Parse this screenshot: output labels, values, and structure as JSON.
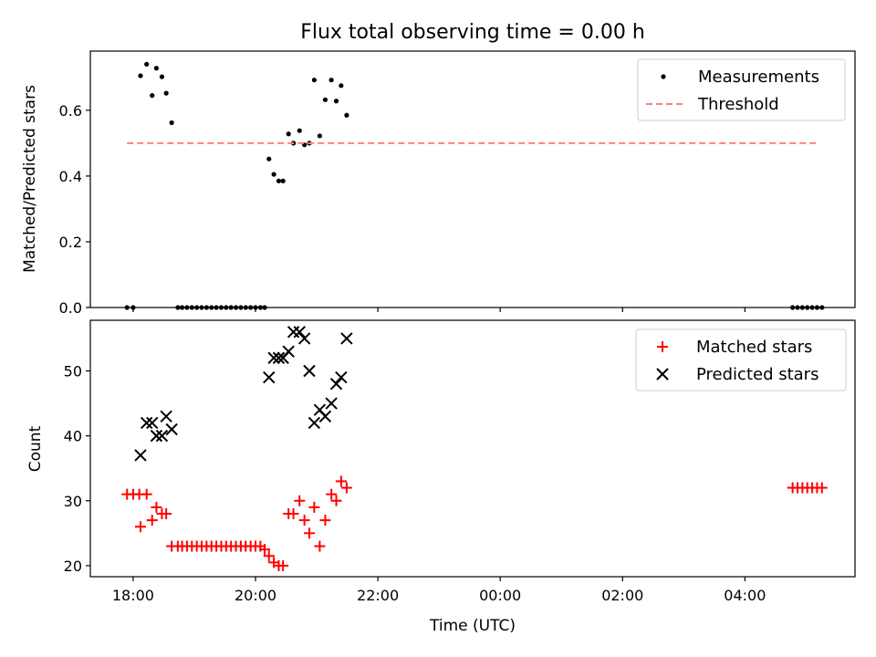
{
  "chart_data": [
    {
      "type": "scatter",
      "title": "Flux total observing time = 0.00 h",
      "xlabel": "",
      "ylabel": "Matched/Predicted stars",
      "xlim": [
        17.3,
        29.8
      ],
      "ylim": [
        0.0,
        0.78
      ],
      "yticks": [
        0.0,
        0.2,
        0.4,
        0.6
      ],
      "ytick_labels": [
        "0.0",
        "0.2",
        "0.4",
        "0.6"
      ],
      "legend_position": "top-right",
      "series": [
        {
          "name": "Measurements",
          "marker": "dot",
          "color": "#000000",
          "x": [
            17.9,
            18.0,
            18.12,
            18.22,
            18.31,
            18.38,
            18.47,
            18.54,
            18.63,
            18.73,
            18.8,
            18.88,
            18.96,
            19.04,
            19.12,
            19.2,
            19.28,
            19.36,
            19.44,
            19.52,
            19.6,
            19.68,
            19.76,
            19.84,
            19.92,
            20.0,
            20.08,
            20.15,
            20.22,
            20.3,
            20.38,
            20.45,
            20.54,
            20.62,
            20.72,
            20.8,
            20.88,
            20.96,
            21.05,
            21.14,
            21.24,
            21.32,
            21.4,
            21.49,
            28.78,
            28.86,
            28.94,
            29.02,
            29.1,
            29.18,
            29.26
          ],
          "y": [
            0.0,
            0.0,
            0.705,
            0.74,
            0.645,
            0.728,
            0.702,
            0.652,
            0.562,
            0.0,
            0.0,
            0.0,
            0.0,
            0.0,
            0.0,
            0.0,
            0.0,
            0.0,
            0.0,
            0.0,
            0.0,
            0.0,
            0.0,
            0.0,
            0.0,
            0.0,
            0.0,
            0.0,
            0.452,
            0.405,
            0.385,
            0.385,
            0.528,
            0.5,
            0.538,
            0.495,
            0.5,
            0.692,
            0.522,
            0.632,
            0.692,
            0.628,
            0.675,
            0.585,
            0.0,
            0.0,
            0.0,
            0.0,
            0.0,
            0.0,
            0.0
          ]
        },
        {
          "name": "Threshold",
          "style": "dashed",
          "color": "#ff7f7f",
          "x": [
            17.9,
            29.2
          ],
          "y": [
            0.5,
            0.5
          ]
        }
      ]
    },
    {
      "type": "scatter",
      "title": "",
      "xlabel": "Time (UTC)",
      "ylabel": "Count",
      "xlim": [
        17.3,
        29.8
      ],
      "ylim": [
        18.3,
        57.8
      ],
      "yticks": [
        20,
        30,
        40,
        50
      ],
      "ytick_labels": [
        "20",
        "30",
        "40",
        "50"
      ],
      "xticks": [
        18,
        20,
        22,
        24,
        26,
        28
      ],
      "xtick_labels": [
        "18:00",
        "20:00",
        "22:00",
        "00:00",
        "02:00",
        "04:00"
      ],
      "legend_position": "top-right",
      "series": [
        {
          "name": "Matched stars",
          "marker": "plus",
          "color": "#ff0000",
          "x": [
            17.9,
            18.0,
            18.1,
            18.12,
            18.22,
            18.31,
            18.38,
            18.47,
            18.54,
            18.63,
            18.73,
            18.8,
            18.88,
            18.96,
            19.04,
            19.12,
            19.2,
            19.28,
            19.36,
            19.44,
            19.52,
            19.6,
            19.68,
            19.76,
            19.84,
            19.92,
            20.0,
            20.08,
            20.15,
            20.22,
            20.3,
            20.38,
            20.45,
            20.54,
            20.62,
            20.72,
            20.8,
            20.88,
            20.96,
            21.05,
            21.14,
            21.24,
            21.32,
            21.4,
            21.49,
            28.78,
            28.86,
            28.94,
            29.02,
            29.1,
            29.18,
            29.26
          ],
          "y": [
            31,
            31,
            31,
            26,
            31,
            27,
            29,
            28,
            28,
            23,
            23,
            23,
            23,
            23,
            23,
            23,
            23,
            23,
            23,
            23,
            23,
            23,
            23,
            23,
            23,
            23,
            23,
            23,
            22.5,
            21.5,
            20.5,
            20,
            20,
            28,
            28,
            30,
            27,
            25,
            29,
            23,
            27,
            31,
            30,
            33,
            32,
            32,
            32,
            32,
            32,
            32,
            32,
            32
          ]
        },
        {
          "name": "Predicted stars",
          "marker": "x",
          "color": "#000000",
          "x": [
            18.12,
            18.22,
            18.31,
            18.38,
            18.47,
            18.54,
            18.63,
            20.22,
            20.3,
            20.38,
            20.45,
            20.54,
            20.62,
            20.72,
            20.8,
            20.88,
            20.96,
            21.05,
            21.14,
            21.24,
            21.32,
            21.4,
            21.49
          ],
          "y": [
            37,
            42,
            42,
            40,
            40,
            43,
            41,
            49,
            52,
            52,
            52,
            53,
            56,
            56,
            55,
            50,
            42,
            44,
            43,
            45,
            48,
            49,
            55
          ]
        }
      ]
    }
  ]
}
